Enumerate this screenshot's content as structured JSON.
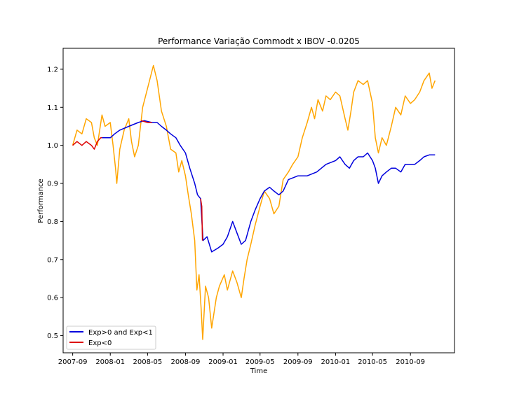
{
  "chart_data": {
    "type": "line",
    "title": "Performance Variação Commodt x IBOV -0.0205",
    "xlabel": "Time",
    "ylabel": "Performance",
    "xlim": [
      "2007-08-01",
      "2011-01-22"
    ],
    "ylim": [
      0.455,
      1.255
    ],
    "grid": false,
    "legend_position": "lower-left",
    "x_ticks": [
      "2007-09",
      "2008-01",
      "2008-05",
      "2008-09",
      "2009-01",
      "2009-05",
      "2009-09",
      "2010-01",
      "2010-05",
      "2010-09"
    ],
    "y_ticks": [
      "0.5",
      "0.6",
      "0.7",
      "0.8",
      "0.9",
      "1.0",
      "1.1",
      "1.2"
    ],
    "legend": [
      {
        "label": "Exp>0 and Exp<1",
        "color": "#0000dd"
      },
      {
        "label": "Exp<0",
        "color": "#dd0000"
      }
    ],
    "series": [
      {
        "color": "#ffa500",
        "points": [
          [
            "2007-09-01",
            1.0
          ],
          [
            "2007-09-15",
            1.04
          ],
          [
            "2007-10-01",
            1.03
          ],
          [
            "2007-10-15",
            1.07
          ],
          [
            "2007-11-01",
            1.06
          ],
          [
            "2007-11-10",
            1.02
          ],
          [
            "2007-11-20",
            1.0
          ],
          [
            "2007-12-05",
            1.08
          ],
          [
            "2007-12-15",
            1.05
          ],
          [
            "2008-01-01",
            1.06
          ],
          [
            "2008-01-10",
            1.0
          ],
          [
            "2008-01-18",
            0.94
          ],
          [
            "2008-01-22",
            0.9
          ],
          [
            "2008-02-01",
            0.99
          ],
          [
            "2008-02-15",
            1.04
          ],
          [
            "2008-03-01",
            1.07
          ],
          [
            "2008-03-10",
            1.01
          ],
          [
            "2008-03-20",
            0.97
          ],
          [
            "2008-04-01",
            1.0
          ],
          [
            "2008-04-15",
            1.1
          ],
          [
            "2008-05-01",
            1.15
          ],
          [
            "2008-05-20",
            1.21
          ],
          [
            "2008-06-01",
            1.17
          ],
          [
            "2008-06-15",
            1.09
          ],
          [
            "2008-07-01",
            1.05
          ],
          [
            "2008-07-15",
            0.99
          ],
          [
            "2008-08-01",
            0.98
          ],
          [
            "2008-08-10",
            0.93
          ],
          [
            "2008-08-20",
            0.96
          ],
          [
            "2008-09-01",
            0.92
          ],
          [
            "2008-09-10",
            0.87
          ],
          [
            "2008-09-20",
            0.82
          ],
          [
            "2008-10-01",
            0.75
          ],
          [
            "2008-10-08",
            0.62
          ],
          [
            "2008-10-15",
            0.66
          ],
          [
            "2008-10-22",
            0.57
          ],
          [
            "2008-10-27",
            0.49
          ],
          [
            "2008-11-05",
            0.63
          ],
          [
            "2008-11-15",
            0.6
          ],
          [
            "2008-11-25",
            0.52
          ],
          [
            "2008-12-10",
            0.6
          ],
          [
            "2008-12-20",
            0.63
          ],
          [
            "2009-01-05",
            0.66
          ],
          [
            "2009-01-15",
            0.62
          ],
          [
            "2009-02-01",
            0.67
          ],
          [
            "2009-02-15",
            0.64
          ],
          [
            "2009-03-01",
            0.6
          ],
          [
            "2009-03-10",
            0.65
          ],
          [
            "2009-03-20",
            0.7
          ],
          [
            "2009-04-01",
            0.74
          ],
          [
            "2009-04-15",
            0.79
          ],
          [
            "2009-05-01",
            0.84
          ],
          [
            "2009-05-15",
            0.88
          ],
          [
            "2009-06-01",
            0.86
          ],
          [
            "2009-06-15",
            0.82
          ],
          [
            "2009-07-01",
            0.84
          ],
          [
            "2009-07-15",
            0.91
          ],
          [
            "2009-08-01",
            0.93
          ],
          [
            "2009-08-15",
            0.95
          ],
          [
            "2009-09-01",
            0.97
          ],
          [
            "2009-09-15",
            1.02
          ],
          [
            "2009-10-01",
            1.06
          ],
          [
            "2009-10-15",
            1.1
          ],
          [
            "2009-10-25",
            1.07
          ],
          [
            "2009-11-05",
            1.12
          ],
          [
            "2009-11-20",
            1.09
          ],
          [
            "2009-12-01",
            1.13
          ],
          [
            "2009-12-15",
            1.12
          ],
          [
            "2010-01-01",
            1.14
          ],
          [
            "2010-01-15",
            1.13
          ],
          [
            "2010-02-01",
            1.07
          ],
          [
            "2010-02-10",
            1.04
          ],
          [
            "2010-02-20",
            1.09
          ],
          [
            "2010-03-01",
            1.14
          ],
          [
            "2010-03-15",
            1.17
          ],
          [
            "2010-04-01",
            1.16
          ],
          [
            "2010-04-15",
            1.17
          ],
          [
            "2010-05-01",
            1.11
          ],
          [
            "2010-05-10",
            1.02
          ],
          [
            "2010-05-20",
            0.98
          ],
          [
            "2010-06-01",
            1.02
          ],
          [
            "2010-06-15",
            1.0
          ],
          [
            "2010-07-01",
            1.05
          ],
          [
            "2010-07-15",
            1.1
          ],
          [
            "2010-08-01",
            1.08
          ],
          [
            "2010-08-15",
            1.13
          ],
          [
            "2010-09-01",
            1.11
          ],
          [
            "2010-09-15",
            1.12
          ],
          [
            "2010-10-01",
            1.14
          ],
          [
            "2010-10-15",
            1.17
          ],
          [
            "2010-11-01",
            1.19
          ],
          [
            "2010-11-10",
            1.15
          ],
          [
            "2010-11-20",
            1.17
          ]
        ]
      },
      {
        "color": "#0000dd",
        "points": [
          [
            "2007-12-05",
            1.02
          ],
          [
            "2008-01-01",
            1.02
          ],
          [
            "2008-01-15",
            1.03
          ],
          [
            "2008-02-01",
            1.04
          ],
          [
            "2008-03-01",
            1.05
          ],
          [
            "2008-04-01",
            1.06
          ],
          [
            "2008-04-20",
            1.065
          ],
          [
            "2008-05-15",
            1.06
          ],
          [
            "2008-06-01",
            1.06
          ],
          [
            "2008-06-15",
            1.05
          ],
          [
            "2008-07-01",
            1.04
          ],
          [
            "2008-07-15",
            1.03
          ],
          [
            "2008-08-01",
            1.02
          ],
          [
            "2008-08-15",
            1.0
          ],
          [
            "2008-09-01",
            0.98
          ],
          [
            "2008-09-15",
            0.94
          ],
          [
            "2008-10-01",
            0.9
          ],
          [
            "2008-10-10",
            0.87
          ],
          [
            "2008-10-20",
            0.86
          ],
          [
            "2008-10-28",
            0.75
          ],
          [
            "2008-11-10",
            0.76
          ],
          [
            "2008-11-25",
            0.72
          ],
          [
            "2008-12-15",
            0.73
          ],
          [
            "2009-01-01",
            0.74
          ],
          [
            "2009-01-15",
            0.76
          ],
          [
            "2009-02-01",
            0.8
          ],
          [
            "2009-02-15",
            0.77
          ],
          [
            "2009-03-01",
            0.74
          ],
          [
            "2009-03-15",
            0.75
          ],
          [
            "2009-04-01",
            0.8
          ],
          [
            "2009-04-15",
            0.83
          ],
          [
            "2009-05-01",
            0.86
          ],
          [
            "2009-05-15",
            0.88
          ],
          [
            "2009-06-01",
            0.89
          ],
          [
            "2009-06-15",
            0.88
          ],
          [
            "2009-07-01",
            0.87
          ],
          [
            "2009-07-15",
            0.88
          ],
          [
            "2009-08-01",
            0.91
          ],
          [
            "2009-09-01",
            0.92
          ],
          [
            "2009-10-01",
            0.92
          ],
          [
            "2009-11-01",
            0.93
          ],
          [
            "2009-12-01",
            0.95
          ],
          [
            "2010-01-01",
            0.96
          ],
          [
            "2010-01-15",
            0.97
          ],
          [
            "2010-02-01",
            0.95
          ],
          [
            "2010-02-15",
            0.94
          ],
          [
            "2010-03-01",
            0.96
          ],
          [
            "2010-03-15",
            0.97
          ],
          [
            "2010-04-01",
            0.97
          ],
          [
            "2010-04-15",
            0.98
          ],
          [
            "2010-05-01",
            0.96
          ],
          [
            "2010-05-10",
            0.94
          ],
          [
            "2010-05-20",
            0.9
          ],
          [
            "2010-06-01",
            0.92
          ],
          [
            "2010-06-15",
            0.93
          ],
          [
            "2010-07-01",
            0.94
          ],
          [
            "2010-07-15",
            0.94
          ],
          [
            "2010-08-01",
            0.93
          ],
          [
            "2010-08-15",
            0.95
          ],
          [
            "2010-09-01",
            0.95
          ],
          [
            "2010-09-15",
            0.95
          ],
          [
            "2010-10-01",
            0.96
          ],
          [
            "2010-10-15",
            0.97
          ],
          [
            "2010-11-01",
            0.975
          ],
          [
            "2010-11-20",
            0.975
          ]
        ]
      },
      {
        "color": "#dd0000",
        "points": [
          [
            "2007-09-01",
            1.0
          ],
          [
            "2007-09-15",
            1.01
          ],
          [
            "2007-10-01",
            1.0
          ],
          [
            "2007-10-15",
            1.01
          ],
          [
            "2007-11-01",
            1.0
          ],
          [
            "2007-11-10",
            0.99
          ],
          [
            "2007-11-20",
            1.01
          ],
          [
            "2007-12-01",
            1.02
          ],
          [
            "2007-12-05",
            1.02
          ]
        ]
      },
      {
        "color": "#dd0000",
        "points": [
          [
            "2008-04-10",
            1.065
          ],
          [
            "2008-05-01",
            1.06
          ],
          [
            "2008-05-15",
            1.06
          ]
        ]
      },
      {
        "color": "#dd0000",
        "points": [
          [
            "2008-10-20",
            0.86
          ],
          [
            "2008-10-24",
            0.84
          ],
          [
            "2008-10-26",
            0.75
          ]
        ]
      }
    ]
  }
}
